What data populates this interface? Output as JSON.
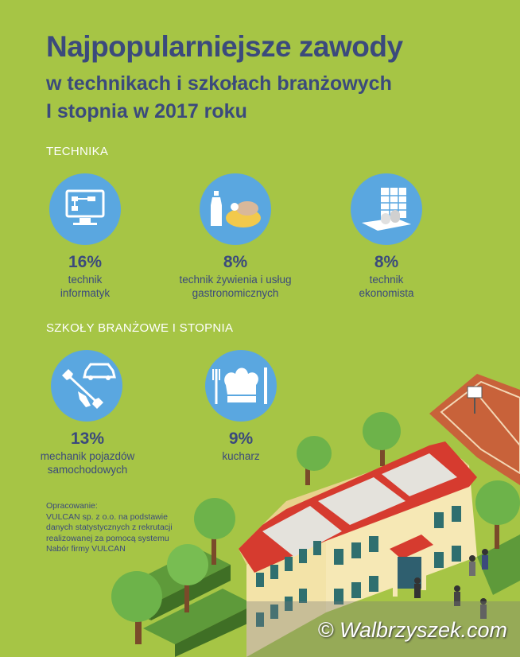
{
  "title": {
    "line1": "Najpopularniejsze zawody",
    "line2": "w technikach i szkołach branżowych",
    "line3": "I stopnia w 2017 roku"
  },
  "sections": {
    "technika": "TECHNIKA",
    "branzowe": "SZKOŁY BRANŻOWE I STOPNIA"
  },
  "technika_items": [
    {
      "percent": "16%",
      "label_line1": "technik",
      "label_line2": "informatyk",
      "icon": "computer-icon"
    },
    {
      "percent": "8%",
      "label_line1": "technik żywienia i usług",
      "label_line2": "gastronomicznych",
      "icon": "food-icon"
    },
    {
      "percent": "8%",
      "label_line1": "technik",
      "label_line2": "ekonomista",
      "icon": "finance-icon"
    }
  ],
  "branzowe_items": [
    {
      "percent": "13%",
      "label_line1": "mechanik pojazdów",
      "label_line2": "samochodowych",
      "icon": "car-wrench-icon"
    },
    {
      "percent": "9%",
      "label_line1": "kucharz",
      "label_line2": "",
      "icon": "chef-hat-icon"
    }
  ],
  "source": {
    "line1": "Opracowanie:",
    "line2": "VULCAN sp. z o.o. na podstawie",
    "line3": "danych statystycznych z rekrutacji",
    "line4": "realizowanej za pomocą systemu",
    "line5": "Nabór firmy VULCAN"
  },
  "watermark": "© Walbrzyszek.com",
  "colors": {
    "background": "#a6c545",
    "title": "#3b4a7c",
    "circle": "#5aa7e0",
    "roof": "#d63b2f"
  }
}
